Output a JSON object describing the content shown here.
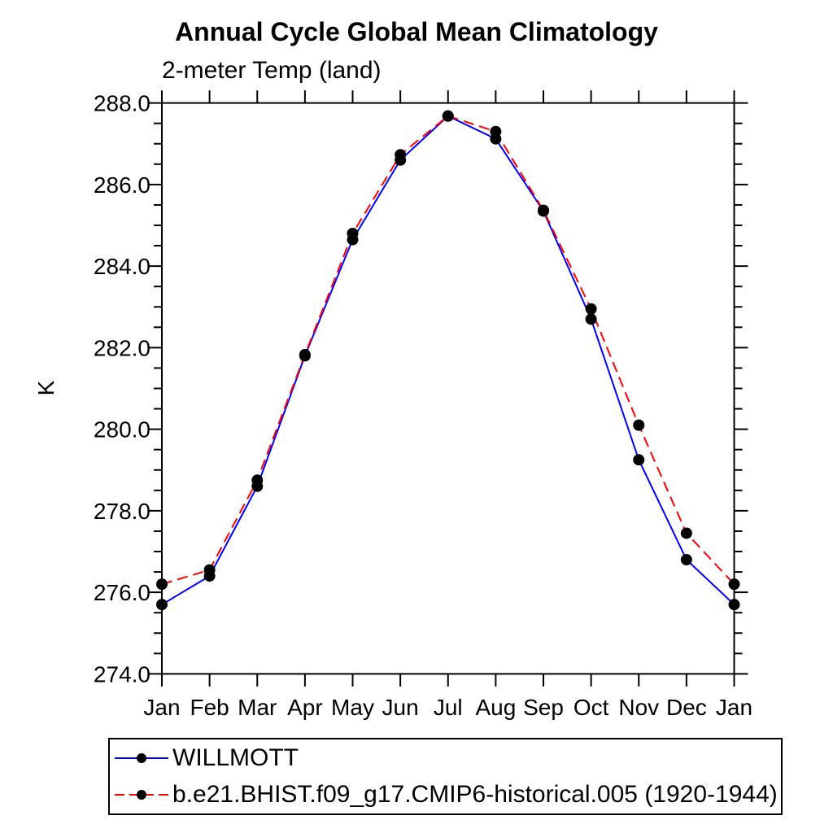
{
  "page": {
    "background": "#ffffff"
  },
  "chart_data": {
    "type": "line",
    "title": "Annual Cycle Global Mean Climatology",
    "subtitle": "2-meter Temp (land)",
    "ylabel": "K",
    "xlabel": "",
    "categories": [
      "Jan",
      "Feb",
      "Mar",
      "Apr",
      "May",
      "Jun",
      "Jul",
      "Aug",
      "Sep",
      "Oct",
      "Nov",
      "Dec",
      "Jan"
    ],
    "series": [
      {
        "name": "WILLMOTT",
        "color": "#0000ff",
        "line_style": "solid",
        "marker": "filled-circle",
        "values": [
          275.7,
          276.4,
          278.6,
          281.8,
          284.65,
          286.6,
          287.68,
          287.12,
          285.35,
          282.7,
          279.25,
          276.8,
          275.7
        ]
      },
      {
        "name": "b.e21.BHIST.f09_g17.CMIP6-historical.005 (1920-1944)",
        "color": "#ff0000",
        "line_style": "dashed",
        "marker": "filled-circle",
        "values": [
          276.2,
          276.55,
          278.75,
          281.83,
          284.8,
          286.73,
          287.68,
          287.3,
          285.37,
          282.95,
          280.1,
          277.45,
          276.2
        ]
      }
    ],
    "ylim": [
      274.0,
      288.0
    ],
    "ytick_values": [
      274.0,
      276.0,
      278.0,
      280.0,
      282.0,
      284.0,
      286.0,
      288.0
    ],
    "ytick_labels": [
      "274.0",
      "276.0",
      "278.0",
      "280.0",
      "282.0",
      "284.0",
      "286.0",
      "288.0"
    ],
    "ytick_minor_step": 0.5,
    "grid": false,
    "marker_color": "#000000",
    "axis_color": "#000000",
    "legend": {
      "position": "bottom-left",
      "items": [
        {
          "label": "WILLMOTT",
          "color": "#0000ff",
          "line_style": "solid"
        },
        {
          "label": "b.e21.BHIST.f09_g17.CMIP6-historical.005 (1920-1944)",
          "color": "#ff0000",
          "line_style": "dashed"
        }
      ]
    }
  }
}
